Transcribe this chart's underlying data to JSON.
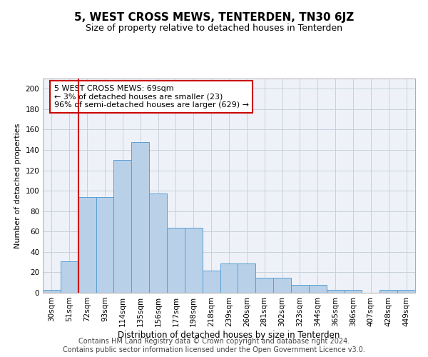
{
  "title": "5, WEST CROSS MEWS, TENTERDEN, TN30 6JZ",
  "subtitle": "Size of property relative to detached houses in Tenterden",
  "xlabel": "Distribution of detached houses by size in Tenterden",
  "ylabel": "Number of detached properties",
  "categories": [
    "30sqm",
    "51sqm",
    "72sqm",
    "93sqm",
    "114sqm",
    "135sqm",
    "156sqm",
    "177sqm",
    "198sqm",
    "218sqm",
    "239sqm",
    "260sqm",
    "281sqm",
    "302sqm",
    "323sqm",
    "344sqm",
    "365sqm",
    "386sqm",
    "407sqm",
    "428sqm",
    "449sqm"
  ],
  "values": [
    3,
    31,
    94,
    94,
    130,
    148,
    97,
    64,
    64,
    22,
    29,
    29,
    15,
    15,
    8,
    8,
    3,
    3,
    0,
    3,
    3
  ],
  "bar_color": "#b8d0e8",
  "bar_edge_color": "#5a9fd4",
  "vline_color": "#cc0000",
  "vline_pos": 1.5,
  "annotation_text": "5 WEST CROSS MEWS: 69sqm\n← 3% of detached houses are smaller (23)\n96% of semi-detached houses are larger (629) →",
  "annotation_box_color": "#ffffff",
  "annotation_box_edge": "#cc0000",
  "ylim": [
    0,
    210
  ],
  "yticks": [
    0,
    20,
    40,
    60,
    80,
    100,
    120,
    140,
    160,
    180,
    200
  ],
  "bg_color": "#eef2f8",
  "grid_color": "#c8d0dc",
  "footer_line1": "Contains HM Land Registry data © Crown copyright and database right 2024.",
  "footer_line2": "Contains public sector information licensed under the Open Government Licence v3.0.",
  "title_fontsize": 11,
  "subtitle_fontsize": 9,
  "annotation_fontsize": 8,
  "footer_fontsize": 7,
  "ylabel_fontsize": 8,
  "xlabel_fontsize": 8.5,
  "tick_fontsize": 7.5
}
